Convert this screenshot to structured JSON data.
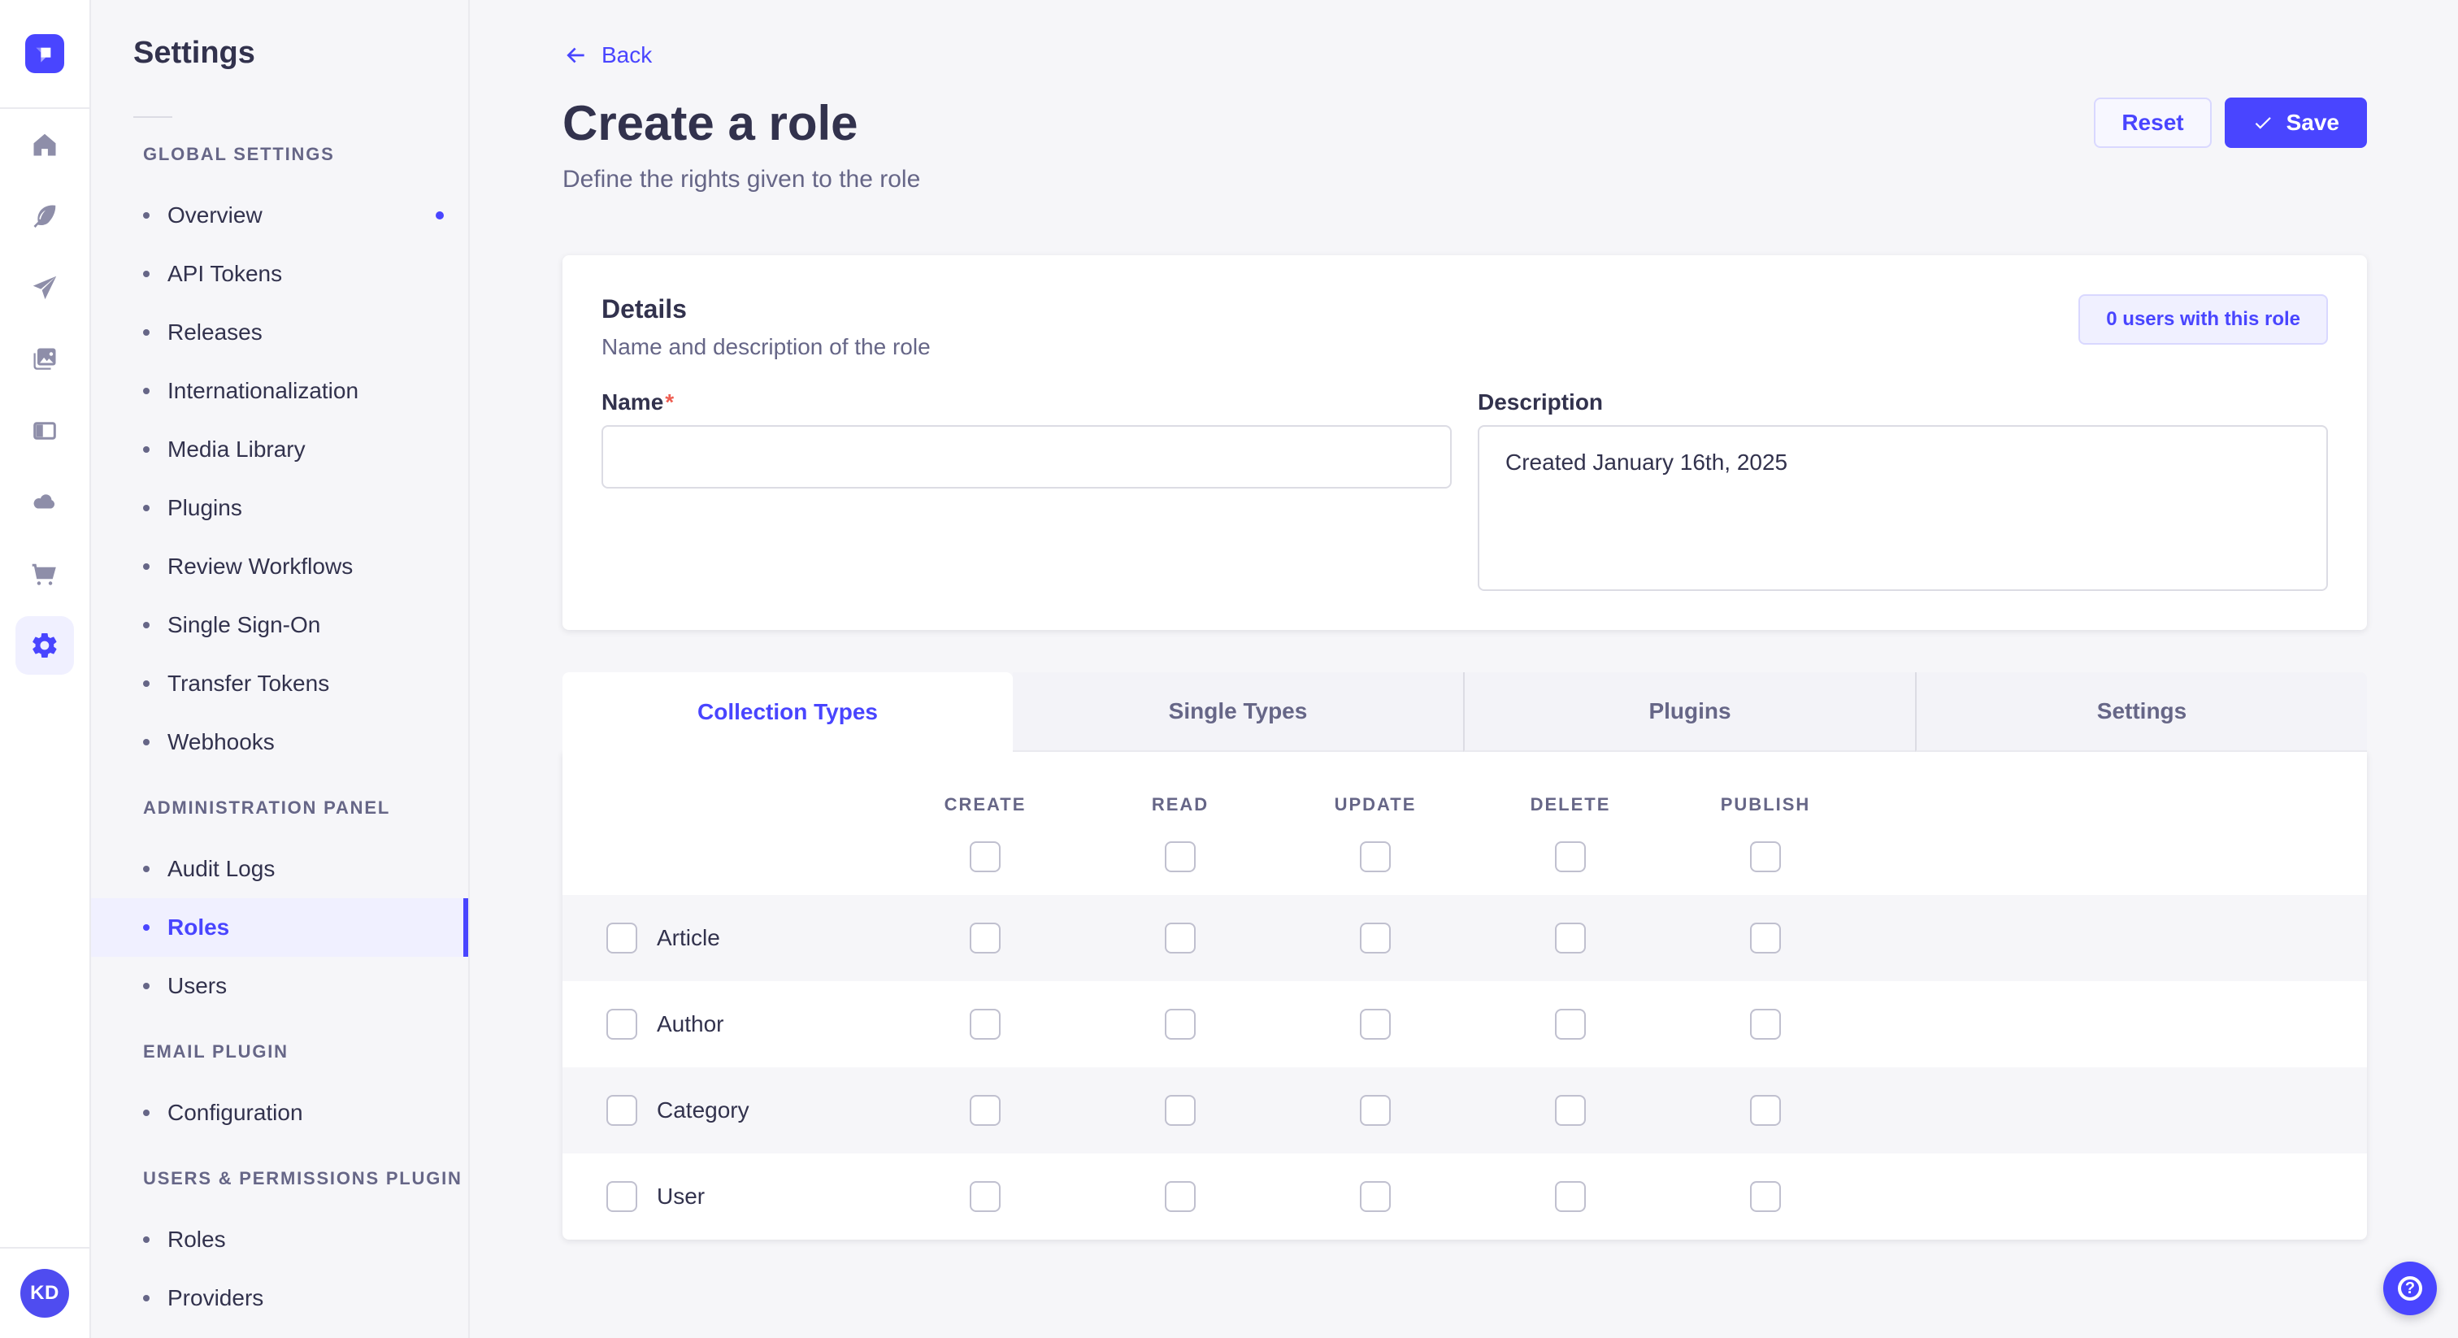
{
  "rail": {
    "logo_icon": "strapi-logo-icon",
    "icons": [
      "home-icon",
      "feather-icon",
      "paper-plane-icon",
      "media-library-icon",
      "content-type-builder-icon",
      "cloud-icon",
      "marketplace-cart-icon",
      "settings-gear-icon"
    ],
    "active_icon": "settings-gear-icon",
    "avatar_initials": "KD"
  },
  "sidebar": {
    "title": "Settings",
    "sections": [
      {
        "label": "GLOBAL SETTINGS",
        "items": [
          {
            "label": "Overview",
            "notification": true
          },
          {
            "label": "API Tokens"
          },
          {
            "label": "Releases"
          },
          {
            "label": "Internationalization"
          },
          {
            "label": "Media Library"
          },
          {
            "label": "Plugins"
          },
          {
            "label": "Review Workflows"
          },
          {
            "label": "Single Sign-On"
          },
          {
            "label": "Transfer Tokens"
          },
          {
            "label": "Webhooks"
          }
        ]
      },
      {
        "label": "ADMINISTRATION PANEL",
        "items": [
          {
            "label": "Audit Logs"
          },
          {
            "label": "Roles",
            "active": true
          },
          {
            "label": "Users"
          }
        ]
      },
      {
        "label": "EMAIL PLUGIN",
        "items": [
          {
            "label": "Configuration"
          }
        ]
      },
      {
        "label": "USERS & PERMISSIONS PLUGIN",
        "items": [
          {
            "label": "Roles"
          },
          {
            "label": "Providers"
          }
        ]
      }
    ]
  },
  "header": {
    "back_label": "Back",
    "title": "Create a role",
    "subtitle": "Define the rights given to the role",
    "reset_label": "Reset",
    "save_label": "Save"
  },
  "details": {
    "title": "Details",
    "subtitle": "Name and description of the role",
    "users_count_label": "0 users with this role",
    "name_label": "Name",
    "name_required_mark": "*",
    "name_value": "",
    "description_label": "Description",
    "description_value": "Created January 16th, 2025"
  },
  "tabs": [
    {
      "label": "Collection Types",
      "active": true
    },
    {
      "label": "Single Types"
    },
    {
      "label": "Plugins"
    },
    {
      "label": "Settings"
    }
  ],
  "permissions": {
    "columns": [
      "CREATE",
      "READ",
      "UPDATE",
      "DELETE",
      "PUBLISH"
    ],
    "select_all_checked": [
      false,
      false,
      false,
      false,
      false
    ],
    "rows": [
      {
        "label": "Article",
        "row_checked": false,
        "values": [
          false,
          false,
          false,
          false,
          false
        ]
      },
      {
        "label": "Author",
        "row_checked": false,
        "values": [
          false,
          false,
          false,
          false,
          false
        ]
      },
      {
        "label": "Category",
        "row_checked": false,
        "values": [
          false,
          false,
          false,
          false,
          false
        ]
      },
      {
        "label": "User",
        "row_checked": false,
        "values": [
          false,
          false,
          false,
          false,
          false
        ]
      }
    ]
  },
  "help": {
    "icon": "question-mark-icon"
  },
  "colors": {
    "primary": "#4945FF",
    "primary_light": "#F0F0FF",
    "primary_border": "#D9D8FF",
    "text": "#32324D",
    "text_secondary": "#666687",
    "input_border": "#DCDCE4",
    "checkbox_border": "#C0C0CF",
    "row_alt": "#F6F6F9",
    "required": "#EE5E52"
  }
}
